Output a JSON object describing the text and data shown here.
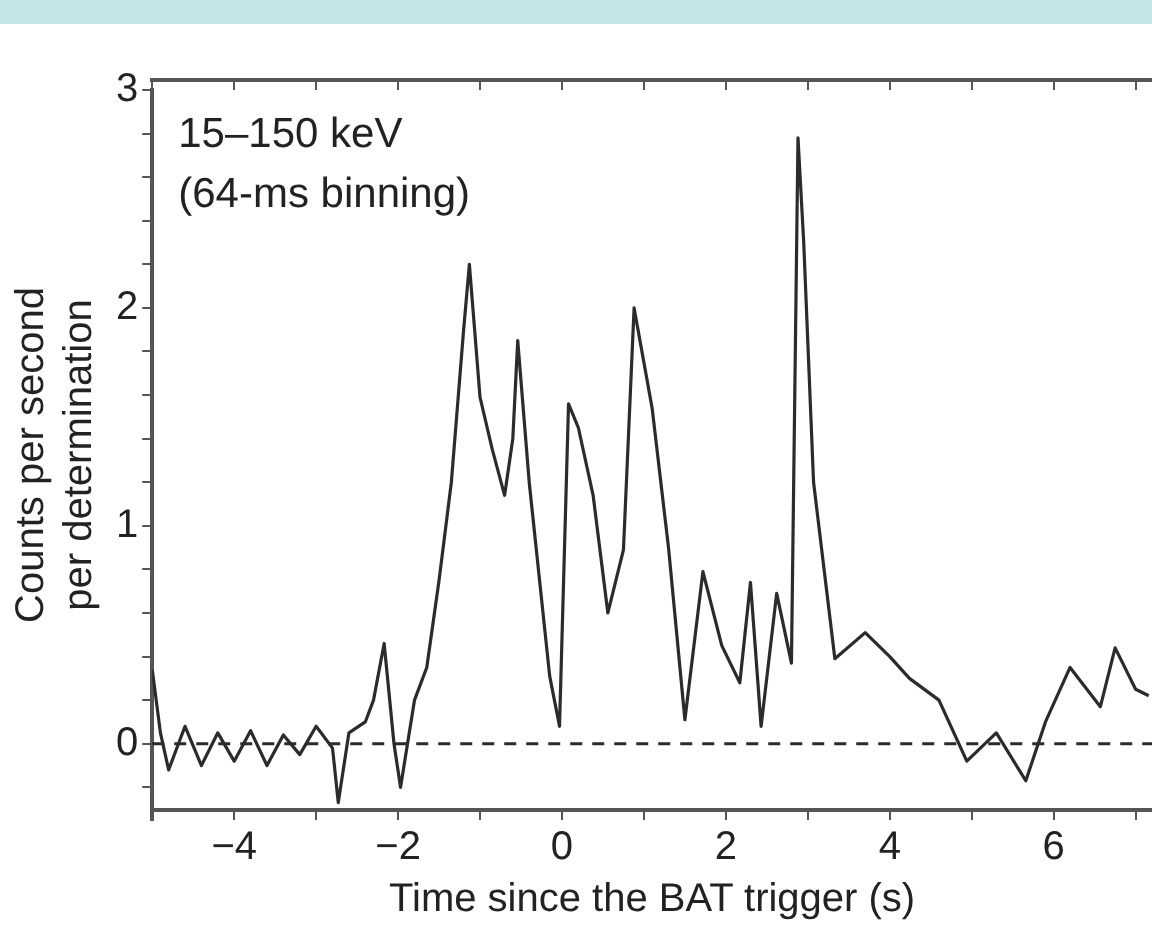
{
  "chart_data": {
    "type": "line",
    "xlabel": "Time since the BAT trigger (s)",
    "ylabel": "Counts per second\nper determination",
    "annotations": [
      "15–150 keV",
      "(64-ms binning)"
    ],
    "series": [
      {
        "color": "#2b2b2b",
        "x": [
          -5,
          -4.9,
          -4.8,
          -4.6,
          -4.4,
          -4.2,
          -4.0,
          -3.8,
          -3.6,
          -3.4,
          -3.2,
          -3.0,
          -2.8,
          -2.73,
          -2.6,
          -2.4,
          -2.3,
          -2.17,
          -2.05,
          -1.97,
          -1.8,
          -1.65,
          -1.5,
          -1.35,
          -1.2,
          -1.13,
          -1.0,
          -0.85,
          -0.7,
          -0.6,
          -0.54,
          -0.4,
          -0.15,
          -0.03,
          0.08,
          0.2,
          0.38,
          0.56,
          0.75,
          0.88,
          1.1,
          1.3,
          1.5,
          1.72,
          1.95,
          2.17,
          2.3,
          2.43,
          2.62,
          2.8,
          2.88,
          2.95,
          3.07,
          3.33,
          3.7,
          4.0,
          4.24,
          4.6,
          4.94,
          5.3,
          5.66,
          5.9,
          6.2,
          6.57,
          6.75,
          7.0,
          7.16
        ],
        "values": [
          0.34,
          0.05,
          -0.12,
          0.08,
          -0.1,
          0.05,
          -0.08,
          0.06,
          -0.1,
          0.04,
          -0.05,
          0.08,
          -0.02,
          -0.27,
          0.05,
          0.1,
          0.2,
          0.46,
          0.0,
          -0.2,
          0.2,
          0.35,
          0.75,
          1.2,
          1.9,
          2.2,
          1.59,
          1.35,
          1.14,
          1.4,
          1.85,
          1.2,
          0.31,
          0.08,
          1.56,
          1.45,
          1.14,
          0.6,
          0.89,
          2.0,
          1.54,
          0.9,
          0.11,
          0.79,
          0.45,
          0.28,
          0.74,
          0.08,
          0.69,
          0.37,
          2.78,
          2.3,
          1.2,
          0.39,
          0.51,
          0.4,
          0.3,
          0.2,
          -0.08,
          0.05,
          -0.17,
          0.1,
          0.35,
          0.17,
          0.44,
          0.25,
          0.22
        ]
      }
    ],
    "xlim": [
      -5,
      7.2
    ],
    "ylim": [
      -0.35,
      3
    ],
    "xticks": [
      {
        "value": -5,
        "label": null
      },
      {
        "value": -4,
        "label": "−4"
      },
      {
        "value": -3,
        "label": null
      },
      {
        "value": -2,
        "label": "−2"
      },
      {
        "value": -1,
        "label": null
      },
      0,
      {
        "value": 1,
        "label": null
      },
      2,
      {
        "value": 3,
        "label": null
      },
      4,
      {
        "value": 5,
        "label": null
      },
      6,
      {
        "value": 7,
        "label": null
      }
    ],
    "yticks": [
      {
        "value": -0.2,
        "label": null
      },
      0,
      {
        "value": 0.2,
        "label": null
      },
      {
        "value": 0.4,
        "label": null
      },
      {
        "value": 0.6,
        "label": null
      },
      {
        "value": 0.8,
        "label": null
      },
      1,
      {
        "value": 1.2,
        "label": null
      },
      {
        "value": 1.4,
        "label": null
      },
      {
        "value": 1.6,
        "label": null
      },
      {
        "value": 1.8,
        "label": null
      },
      2,
      {
        "value": 2.2,
        "label": null
      },
      {
        "value": 2.4,
        "label": null
      },
      {
        "value": 2.6,
        "label": null
      },
      {
        "value": 2.8,
        "label": null
      },
      3
    ],
    "ref_lines": [
      {
        "axis": "y",
        "value": 0,
        "line_style": "dashed",
        "color": "#2b2b2b"
      }
    ],
    "grid": false,
    "legend": false,
    "marker": "none",
    "line_style": "solid"
  }
}
